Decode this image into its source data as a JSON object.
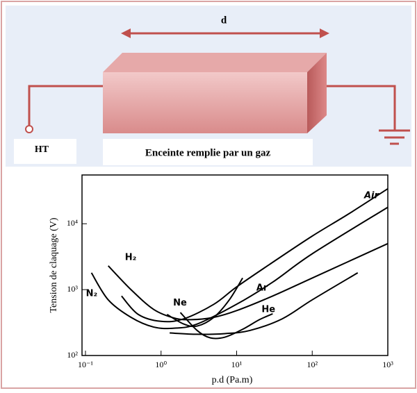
{
  "diagram": {
    "gap_label": "d",
    "source_label": "HT",
    "enclosure_label": "Enceinte remplie par un gaz"
  },
  "chart_data": {
    "type": "line",
    "xlabel": "p.d (Pa.m)",
    "ylabel": "Tension de claquage (V)",
    "xscale": "log",
    "yscale": "log",
    "xlim": [
      0.09,
      1000
    ],
    "ylim": [
      100,
      55000
    ],
    "xticks": [
      {
        "value": 0.1,
        "label": "10⁻¹"
      },
      {
        "value": 1,
        "label": "10⁰"
      },
      {
        "value": 10,
        "label": "10¹"
      },
      {
        "value": 100,
        "label": "10²"
      },
      {
        "value": 1000,
        "label": "10³"
      }
    ],
    "yticks": [
      {
        "value": 100,
        "label": "10²"
      },
      {
        "value": 1000,
        "label": "10³"
      },
      {
        "value": 10000,
        "label": "10⁴"
      }
    ],
    "series": [
      {
        "name": "Air",
        "color": "#000",
        "x": [
          0.3,
          0.5,
          1,
          2,
          5,
          10,
          30,
          100,
          300,
          1000
        ],
        "values": [
          800,
          420,
          330,
          360,
          600,
          1100,
          2600,
          6500,
          14000,
          34000
        ]
      },
      {
        "name": "H₂",
        "color": "#000",
        "x": [
          0.2,
          0.4,
          0.8,
          1.5,
          2.5,
          5,
          10,
          30,
          100,
          1000
        ],
        "values": [
          2300,
          1000,
          500,
          370,
          350,
          380,
          480,
          800,
          1500,
          5000
        ]
      },
      {
        "name": "Ne",
        "color": "#000",
        "x": [
          1.2,
          2,
          3,
          5,
          8,
          12
        ],
        "values": [
          420,
          300,
          280,
          380,
          700,
          1500
        ]
      },
      {
        "name": "He",
        "color": "#000",
        "x": [
          1.8,
          3,
          4.5,
          7,
          12,
          20,
          30
        ],
        "values": [
          450,
          240,
          185,
          190,
          250,
          350,
          430
        ]
      },
      {
        "name": "N₂",
        "color": "#000",
        "x": [
          0.12,
          0.2,
          0.4,
          0.8,
          1.5,
          3,
          10,
          30,
          100,
          1000
        ],
        "values": [
          1800,
          700,
          380,
          270,
          260,
          300,
          600,
          1300,
          3500,
          17800
        ]
      },
      {
        "name": "Ar",
        "color": "#000",
        "x": [
          1.3,
          3,
          7,
          15,
          40,
          100,
          400
        ],
        "values": [
          220,
          210,
          215,
          240,
          360,
          700,
          1800
        ]
      }
    ]
  }
}
